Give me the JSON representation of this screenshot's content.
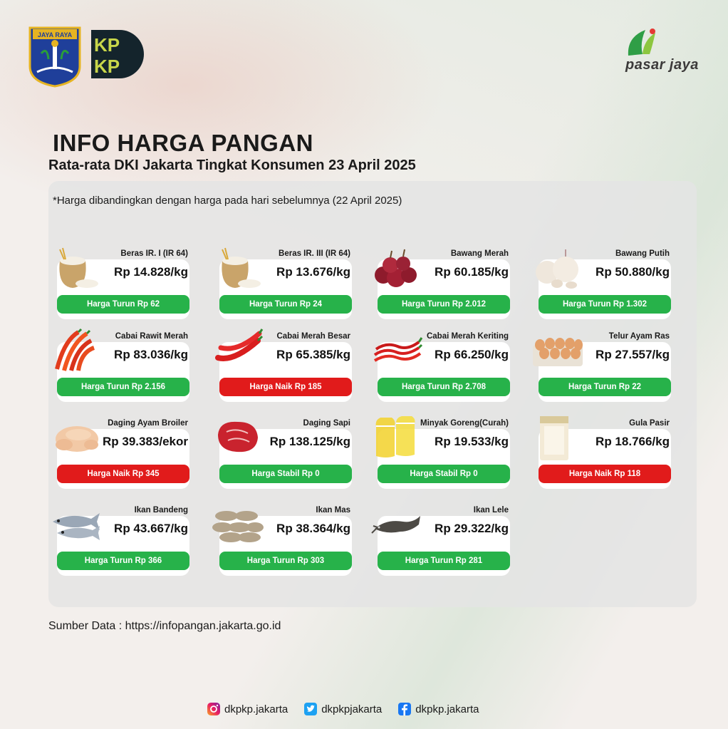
{
  "header": {
    "title": "INFO HARGA PANGAN",
    "subtitle": "Rata-rata DKI Jakarta Tingkat Konsumen 23 April 2025",
    "note": "*Harga dibandingkan dengan harga pada hari sebelumnya (22 April 2025)"
  },
  "logos": {
    "jaya_raya": "JAYA RAYA",
    "kpkp": "KPKP",
    "pasar_jaya": "pasar jaya"
  },
  "items": [
    {
      "name": "Beras IR. I (IR 64)",
      "price": "Rp 14.828/kg",
      "status": "Harga Turun Rp 62",
      "trend": "turun",
      "icon": "rice-sack-icon"
    },
    {
      "name": "Beras IR. III (IR 64)",
      "price": "Rp 13.676/kg",
      "status": "Harga Turun Rp 24",
      "trend": "turun",
      "icon": "rice-sack-icon"
    },
    {
      "name": "Bawang Merah",
      "price": "Rp 60.185/kg",
      "status": "Harga Turun Rp 2.012",
      "trend": "turun",
      "icon": "shallot-icon"
    },
    {
      "name": "Bawang Putih",
      "price": "Rp 50.880/kg",
      "status": "Harga Turun Rp 1.302",
      "trend": "turun",
      "icon": "garlic-icon"
    },
    {
      "name": "Cabai Rawit Merah",
      "price": "Rp 83.036/kg",
      "status": "Harga Turun Rp 2.156",
      "trend": "turun",
      "icon": "chili-pile-icon"
    },
    {
      "name": "Cabai Merah Besar",
      "price": "Rp 65.385/kg",
      "status": "Harga Naik Rp 185",
      "trend": "naik",
      "icon": "chili-icon"
    },
    {
      "name": "Cabai Merah Keriting",
      "price": "Rp 66.250/kg",
      "status": "Harga Turun Rp 2.708",
      "trend": "turun",
      "icon": "curly-chili-icon"
    },
    {
      "name": "Telur Ayam Ras",
      "price": "Rp 27.557/kg",
      "status": "Harga Turun Rp 22",
      "trend": "turun",
      "icon": "egg-tray-icon"
    },
    {
      "name": "Daging Ayam Broiler",
      "price": "Rp 39.383/ekor",
      "status": "Harga Naik Rp 345",
      "trend": "naik",
      "icon": "chicken-icon"
    },
    {
      "name": "Daging Sapi",
      "price": "Rp 138.125/kg",
      "status": "Harga Stabil Rp 0",
      "trend": "stabil",
      "icon": "beef-icon"
    },
    {
      "name": "Minyak Goreng(Curah)",
      "price": "Rp 19.533/kg",
      "status": "Harga Stabil Rp 0",
      "trend": "stabil",
      "icon": "cooking-oil-icon"
    },
    {
      "name": "Gula Pasir",
      "price": "Rp 18.766/kg",
      "status": "Harga Naik Rp 118",
      "trend": "naik",
      "icon": "sugar-bag-icon"
    },
    {
      "name": "Ikan Bandeng",
      "price": "Rp 43.667/kg",
      "status": "Harga Turun Rp 366",
      "trend": "turun",
      "icon": "milkfish-icon"
    },
    {
      "name": "Ikan Mas",
      "price": "Rp 38.364/kg",
      "status": "Harga Turun Rp 303",
      "trend": "turun",
      "icon": "carp-icon"
    },
    {
      "name": "Ikan Lele",
      "price": "Rp 29.322/kg",
      "status": "Harga Turun Rp 281",
      "trend": "turun",
      "icon": "catfish-icon"
    }
  ],
  "footer": {
    "source": "Sumber Data : https://infopangan.jakarta.go.id",
    "instagram": "dkpkp.jakarta",
    "twitter": "dkpkpjakarta",
    "facebook": "dkpkp.jakarta"
  },
  "colors": {
    "turun": "#27b24a",
    "naik": "#e11b1b",
    "stabil": "#27b24a",
    "panel": "#e4e4e4"
  }
}
